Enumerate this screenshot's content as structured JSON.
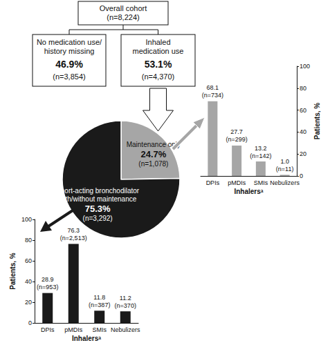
{
  "flowchart": {
    "root": {
      "label": [
        "Overall cohort"
      ],
      "n": "(n=8,224)"
    },
    "children": [
      {
        "label": [
          "No medication use/",
          "history missing"
        ],
        "percent": "46.9%",
        "n": "(n=3,854)"
      },
      {
        "label": [
          "Inhaled",
          "medication use"
        ],
        "percent": "53.1%",
        "n": "(n=4,370)"
      }
    ]
  },
  "chart_data": [
    {
      "type": "pie",
      "categories": [
        "Maintenance only",
        "Short-acting bronchodilator with/without maintenance"
      ],
      "values": [
        24.7,
        75.3
      ],
      "value_labels": [
        "24.7% (n=1,078)",
        "75.3% (n=3,292)"
      ],
      "colors": [
        "#a6a6a6",
        "#1a1a1a"
      ],
      "data_labels": true
    },
    {
      "type": "bar",
      "categories": [
        "DPIs",
        "pMDIs",
        "SMIs",
        "Nebulizers"
      ],
      "values": [
        68.1,
        27.7,
        13.2,
        1.0
      ],
      "value_labels": [
        "68.1 (n=734)",
        "27.7 (n=299)",
        "13.2 (n=142)",
        "1.0 (n=11)"
      ],
      "color": "#a6a6a6",
      "xlabel": "Inhalersᵃ",
      "ylabel": "Patients, %",
      "ylim": [
        0,
        100
      ],
      "yticks": [
        0,
        20,
        40,
        60,
        80,
        100
      ],
      "grid": false,
      "data_labels": true
    },
    {
      "type": "bar",
      "categories": [
        "DPIs",
        "pMDIs",
        "SMIs",
        "Nebulizers"
      ],
      "values": [
        28.9,
        76.3,
        11.8,
        11.2
      ],
      "value_labels": [
        "28.9 (n=953)",
        "76.3 (n=2,513)",
        "11.8 (n=387)",
        "11.2 (n=370)"
      ],
      "color": "#1a1a1a",
      "xlabel": "Inhalersᵃ",
      "ylabel": "Patients, %",
      "ylim": [
        0,
        100
      ],
      "yticks": [
        0,
        20,
        40,
        60,
        80,
        100
      ],
      "grid": false,
      "data_labels": true
    }
  ]
}
